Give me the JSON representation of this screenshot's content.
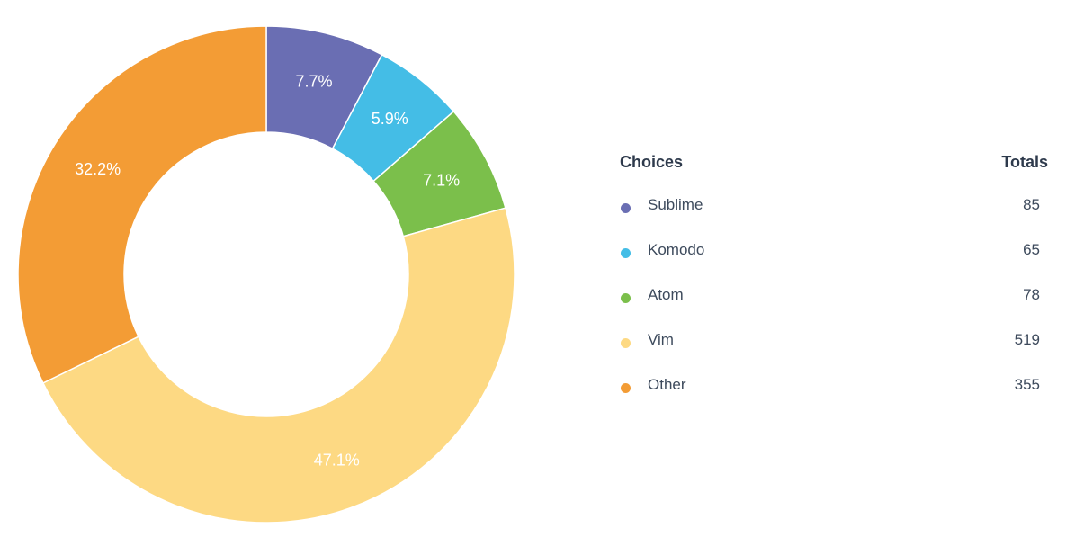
{
  "chart_data": {
    "type": "pie",
    "legend_headers": {
      "choices": "Choices",
      "totals": "Totals"
    },
    "slices": [
      {
        "name": "Sublime",
        "value": 85,
        "percent_label": "7.7%",
        "color": "#6a6eb3"
      },
      {
        "name": "Komodo",
        "value": 65,
        "percent_label": "5.9%",
        "color": "#44bde6"
      },
      {
        "name": "Atom",
        "value": 78,
        "percent_label": "7.1%",
        "color": "#7bbf4b"
      },
      {
        "name": "Vim",
        "value": 519,
        "percent_label": "47.1%",
        "color": "#fdd983"
      },
      {
        "name": "Other",
        "value": 355,
        "percent_label": "32.2%",
        "color": "#f39c35"
      }
    ],
    "legend_placement": "right"
  }
}
